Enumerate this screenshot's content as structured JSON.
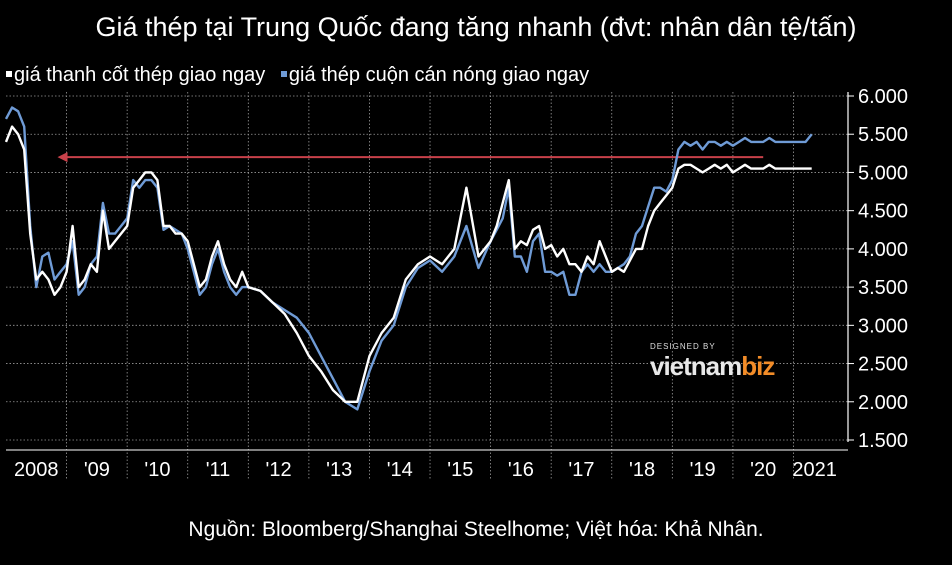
{
  "title": "Giá thép tại Trung Quốc đang tăng nhanh (đvt: nhân dân tệ/tấn)",
  "source": "Nguồn: Bloomberg/Shanghai Steelhome; Việt hóa: Khả Nhân.",
  "logo": {
    "small": "DESIGNED BY",
    "main": "vietnam",
    "accent": "biz"
  },
  "colors": {
    "background": "#000000",
    "rebar": "#ffffff",
    "hrc": "#6f9bd6",
    "arrow": "#c8414a",
    "grid": "#9a9a9a"
  },
  "chart_data": {
    "type": "line",
    "title": "Giá thép tại Trung Quốc đang tăng nhanh (đvt: nhân dân tệ/tấn)",
    "xlabel": "",
    "ylabel": "",
    "ylim": [
      1500,
      6000
    ],
    "yticks": [
      1500,
      2000,
      2500,
      3000,
      3500,
      4000,
      4500,
      5000,
      5500,
      6000
    ],
    "ytick_labels": [
      "1.500",
      "2.000",
      "2.500",
      "3.000",
      "3.500",
      "4.000",
      "4.500",
      "5.000",
      "5.500",
      "6.000"
    ],
    "xlim": [
      2008.0,
      2021.9
    ],
    "x_tick_labels": [
      {
        "x": 2008.5,
        "label": "2008"
      },
      {
        "x": 2009.5,
        "label": "'09"
      },
      {
        "x": 2010.5,
        "label": "'10"
      },
      {
        "x": 2011.5,
        "label": "'11"
      },
      {
        "x": 2012.5,
        "label": "'12"
      },
      {
        "x": 2013.5,
        "label": "'13"
      },
      {
        "x": 2014.5,
        "label": "'14"
      },
      {
        "x": 2015.5,
        "label": "'15"
      },
      {
        "x": 2016.5,
        "label": "'16"
      },
      {
        "x": 2017.5,
        "label": "'17"
      },
      {
        "x": 2018.5,
        "label": "'18"
      },
      {
        "x": 2019.5,
        "label": "'19"
      },
      {
        "x": 2020.5,
        "label": "'20"
      },
      {
        "x": 2021.35,
        "label": "2021"
      }
    ],
    "grid": true,
    "legend_position": "top-left",
    "annotations": [
      {
        "type": "arrow",
        "from": {
          "x": 2020.5,
          "y": 5200
        },
        "to": {
          "x": 2008.85,
          "y": 5200
        },
        "color": "#c8414a"
      }
    ],
    "series": [
      {
        "name": "giá thanh cốt thép giao ngay",
        "color": "#ffffff",
        "x": [
          2008.0,
          2008.1,
          2008.2,
          2008.3,
          2008.4,
          2008.5,
          2008.6,
          2008.7,
          2008.8,
          2008.9,
          2009.0,
          2009.1,
          2009.2,
          2009.3,
          2009.4,
          2009.5,
          2009.6,
          2009.7,
          2009.8,
          2009.9,
          2010.0,
          2010.1,
          2010.2,
          2010.3,
          2010.4,
          2010.5,
          2010.6,
          2010.7,
          2010.8,
          2010.9,
          2011.0,
          2011.1,
          2011.2,
          2011.3,
          2011.4,
          2011.5,
          2011.6,
          2011.7,
          2011.8,
          2011.9,
          2012.0,
          2012.2,
          2012.4,
          2012.6,
          2012.8,
          2013.0,
          2013.2,
          2013.4,
          2013.6,
          2013.8,
          2014.0,
          2014.2,
          2014.4,
          2014.6,
          2014.8,
          2015.0,
          2015.2,
          2015.4,
          2015.6,
          2015.8,
          2016.0,
          2016.1,
          2016.2,
          2016.3,
          2016.4,
          2016.5,
          2016.6,
          2016.7,
          2016.8,
          2016.9,
          2017.0,
          2017.1,
          2017.2,
          2017.3,
          2017.4,
          2017.5,
          2017.6,
          2017.7,
          2017.8,
          2017.9,
          2018.0,
          2018.1,
          2018.2,
          2018.3,
          2018.4,
          2018.5,
          2018.6,
          2018.7,
          2018.8,
          2018.9,
          2019.0,
          2019.1,
          2019.2,
          2019.3,
          2019.4,
          2019.5,
          2019.6,
          2019.7,
          2019.8,
          2019.9,
          2020.0,
          2020.1,
          2020.2,
          2020.3,
          2020.4,
          2020.5,
          2020.6,
          2020.7,
          2020.8,
          2020.9,
          2021.0,
          2021.1,
          2021.2,
          2021.3
        ],
        "values": [
          5400,
          5600,
          5500,
          5300,
          4200,
          3600,
          3700,
          3600,
          3400,
          3500,
          3700,
          4300,
          3500,
          3600,
          3800,
          3700,
          4500,
          4000,
          4100,
          4200,
          4300,
          4800,
          4900,
          5000,
          5000,
          4900,
          4300,
          4300,
          4200,
          4200,
          4100,
          3800,
          3500,
          3600,
          3900,
          4100,
          3800,
          3600,
          3500,
          3700,
          3500,
          3450,
          3300,
          3150,
          2900,
          2600,
          2400,
          2150,
          2000,
          2000,
          2600,
          2900,
          3100,
          3600,
          3800,
          3900,
          3800,
          4000,
          4800,
          3900,
          4100,
          4300,
          4600,
          4900,
          4000,
          4100,
          4050,
          4250,
          4300,
          4000,
          4050,
          3900,
          4000,
          3800,
          3800,
          3700,
          3900,
          3800,
          4100,
          3900,
          3700,
          3750,
          3700,
          3850,
          4000,
          4000,
          4300,
          4500,
          4600,
          4700,
          4800,
          5050,
          5100,
          5100,
          5050,
          5000,
          5050,
          5100,
          5050,
          5100,
          5000,
          5050,
          5100,
          5050,
          5050,
          5050,
          5100,
          5050,
          5050,
          5050,
          5050,
          5050,
          5050,
          5050
        ]
      },
      {
        "name": "giá thép cuộn cán nóng giao ngay",
        "color": "#6f9bd6",
        "x": [
          2008.0,
          2008.1,
          2008.2,
          2008.3,
          2008.4,
          2008.5,
          2008.6,
          2008.7,
          2008.8,
          2008.9,
          2009.0,
          2009.1,
          2009.2,
          2009.3,
          2009.4,
          2009.5,
          2009.6,
          2009.7,
          2009.8,
          2009.9,
          2010.0,
          2010.1,
          2010.2,
          2010.3,
          2010.4,
          2010.5,
          2010.6,
          2010.7,
          2010.8,
          2010.9,
          2011.0,
          2011.1,
          2011.2,
          2011.3,
          2011.4,
          2011.5,
          2011.6,
          2011.7,
          2011.8,
          2011.9,
          2012.0,
          2012.2,
          2012.4,
          2012.6,
          2012.8,
          2013.0,
          2013.2,
          2013.4,
          2013.6,
          2013.8,
          2014.0,
          2014.2,
          2014.4,
          2014.6,
          2014.8,
          2015.0,
          2015.2,
          2015.4,
          2015.6,
          2015.8,
          2016.0,
          2016.1,
          2016.2,
          2016.3,
          2016.4,
          2016.5,
          2016.6,
          2016.7,
          2016.8,
          2016.9,
          2017.0,
          2017.1,
          2017.2,
          2017.3,
          2017.4,
          2017.5,
          2017.6,
          2017.7,
          2017.8,
          2017.9,
          2018.0,
          2018.1,
          2018.2,
          2018.3,
          2018.4,
          2018.5,
          2018.6,
          2018.7,
          2018.8,
          2018.9,
          2019.0,
          2019.1,
          2019.2,
          2019.3,
          2019.4,
          2019.5,
          2019.6,
          2019.7,
          2019.8,
          2019.9,
          2020.0,
          2020.1,
          2020.2,
          2020.3,
          2020.4,
          2020.5,
          2020.6,
          2020.7,
          2020.8,
          2020.9,
          2021.0,
          2021.1,
          2021.2,
          2021.3
        ],
        "values": [
          5700,
          5850,
          5800,
          5600,
          4300,
          3500,
          3900,
          3950,
          3600,
          3700,
          3800,
          4100,
          3400,
          3500,
          3800,
          3900,
          4600,
          4200,
          4200,
          4300,
          4400,
          4900,
          4800,
          4900,
          4900,
          4800,
          4250,
          4300,
          4250,
          4200,
          4000,
          3700,
          3400,
          3500,
          3800,
          4000,
          3700,
          3500,
          3400,
          3500,
          3500,
          3450,
          3300,
          3200,
          3100,
          2900,
          2600,
          2300,
          2000,
          1900,
          2400,
          2800,
          3000,
          3500,
          3750,
          3850,
          3700,
          3900,
          4300,
          3750,
          4100,
          4250,
          4400,
          4800,
          3900,
          3900,
          3700,
          4100,
          4200,
          3700,
          3700,
          3650,
          3700,
          3400,
          3400,
          3700,
          3800,
          3700,
          3800,
          3700,
          3700,
          3750,
          3800,
          3900,
          4200,
          4300,
          4550,
          4800,
          4800,
          4750,
          4900,
          5300,
          5400,
          5350,
          5400,
          5300,
          5400,
          5400,
          5350,
          5400,
          5350,
          5400,
          5450,
          5400,
          5400,
          5400,
          5450,
          5400,
          5400,
          5400,
          5400,
          5400,
          5400,
          5500
        ]
      }
    ]
  }
}
